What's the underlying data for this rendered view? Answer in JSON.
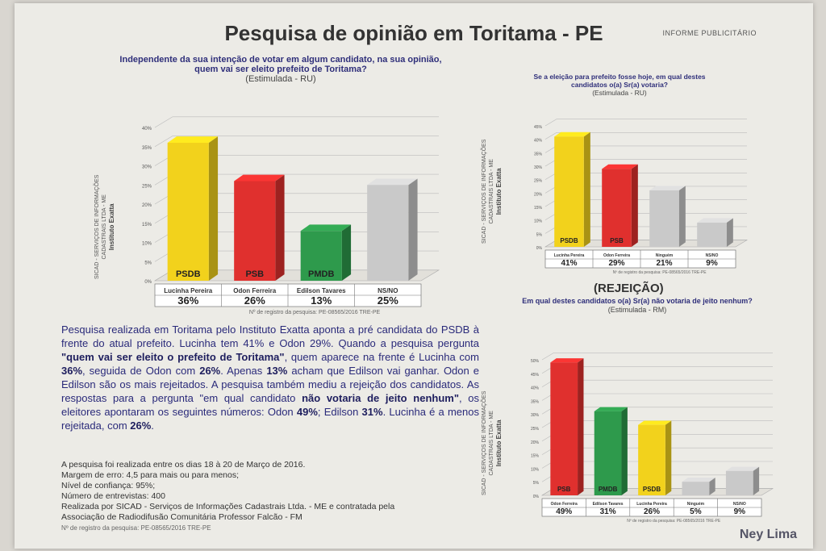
{
  "header": {
    "title": "Pesquisa de opinião em Toritama - PE",
    "tag": "INFORME PUBLICITÁRIO"
  },
  "sidebar": {
    "line1": "SICAD - SERVIÇOS DE INFORMAÇÕES",
    "line2": "CADASTRAIS LTDA - ME",
    "line3": "Instituto Exatta"
  },
  "chart_data": [
    {
      "type": "bar",
      "question": "Independente da sua intenção de votar em algum candidato, na sua opinião, quem vai ser eleito prefeito de Toritama?",
      "subtitle": "(Estimulada - RU)",
      "categories": [
        "Lucinha Pereira",
        "Odon Ferreira",
        "Edilson Tavares",
        "NS/NO"
      ],
      "parties": [
        "PSDB",
        "PSB",
        "PMDB",
        ""
      ],
      "values": [
        36,
        26,
        13,
        25
      ],
      "value_labels": [
        "36%",
        "26%",
        "13%",
        "25%"
      ],
      "colors": [
        "#f2d21c",
        "#e0302e",
        "#2e9a4c",
        "#c9c9c9"
      ],
      "yticks": [
        "0%",
        "5%",
        "10%",
        "15%",
        "20%",
        "25%",
        "30%",
        "35%",
        "40%"
      ],
      "ylim": [
        0,
        40
      ],
      "registration": "Nº de registro da pesquisa: PE-08565/2016 TRE-PE"
    },
    {
      "type": "bar",
      "question": "Se a eleição para prefeito fosse hoje, em qual destes candidatos o(a) Sr(a) votaria?",
      "subtitle": "(Estimulada - RU)",
      "categories": [
        "Lucinha Pereira",
        "Odon Ferreira",
        "Ninguém",
        "NS/NO"
      ],
      "parties": [
        "PSDB",
        "PSB",
        "",
        ""
      ],
      "values": [
        41,
        29,
        21,
        9
      ],
      "value_labels": [
        "41%",
        "29%",
        "21%",
        "9%"
      ],
      "colors": [
        "#f2d21c",
        "#e0302e",
        "#c9c9c9",
        "#c9c9c9"
      ],
      "yticks": [
        "0%",
        "5%",
        "10%",
        "15%",
        "20%",
        "25%",
        "30%",
        "35%",
        "40%",
        "45%"
      ],
      "ylim": [
        0,
        45
      ],
      "registration": "Nº de registro da pesquisa: PE-08565/2016 TRE-PE"
    },
    {
      "type": "bar",
      "title": "(REJEIÇÃO)",
      "question": "Em qual destes candidatos o(a) Sr(a) não votaria de jeito nenhum?",
      "subtitle": "(Estimulada - RM)",
      "categories": [
        "Odon Ferreira",
        "Edilson Tavares",
        "Lucinha Pereira",
        "Ninguém",
        "NS/NO"
      ],
      "parties": [
        "PSB",
        "PMDB",
        "PSDB",
        "",
        ""
      ],
      "values": [
        49,
        31,
        26,
        5,
        9
      ],
      "value_labels": [
        "49%",
        "31%",
        "26%",
        "5%",
        "9%"
      ],
      "colors": [
        "#e0302e",
        "#2e9a4c",
        "#f2d21c",
        "#c9c9c9",
        "#c9c9c9"
      ],
      "yticks": [
        "0%",
        "5%",
        "10%",
        "15%",
        "20%",
        "25%",
        "30%",
        "35%",
        "40%",
        "45%",
        "50%"
      ],
      "ylim": [
        0,
        50
      ],
      "registration": "Nº de registro da pesquisa: PE-08565/2016 TRE-PE"
    }
  ],
  "article": {
    "p1": "Pesquisa realizada em Toritama pelo Instituto Exatta aponta a pré candidata do PSDB à frente do atual prefeito. Lucinha tem 41% e Odon 29%. Quando a pesquisa pergunta ",
    "q1": "\"quem vai ser eleito o prefeito de Toritama\"",
    "p2": ", quem aparece na frente é Lucinha com ",
    "v1": "36%",
    "p3": ", seguida de Odon com ",
    "v2": "26%",
    "p4": ". Apenas ",
    "v3": "13%",
    "p5": " acham que Edilson vai ganhar. Odon e Edilson são os mais rejeitados. A pesquisa também mediu a rejeição dos candidatos. As respostas para a pergunta \"em qual candidato ",
    "q2": "não votaria de jeito nenhum\"",
    "p6": ", os eleitores apontaram os seguintes números: Odon ",
    "v4": "49%",
    "p7": "; Edilson ",
    "v5": "31%",
    "p8": ". Lucinha é a menos rejeitada, com ",
    "v6": "26%",
    "p9": "."
  },
  "meta": {
    "l1": "A pesquisa foi realizada entre os dias 18 à 20 de Março de 2016.",
    "l2": "Margem de erro: 4,5 para mais ou para menos;",
    "l3": "Nível de confiança: 95%;",
    "l4": "Número de entrevistas: 400",
    "l5": "Realizada por SICAD - Serviços de Informações Cadastrais Ltda. - ME e contratada pela",
    "l6": "Associação de Radiodifusão Comunitária Professor Falcão - FM",
    "l7": "Nº de registro da pesquisa: PE-08565/2016 TRE-PE"
  },
  "watermark": "Ney Lima"
}
